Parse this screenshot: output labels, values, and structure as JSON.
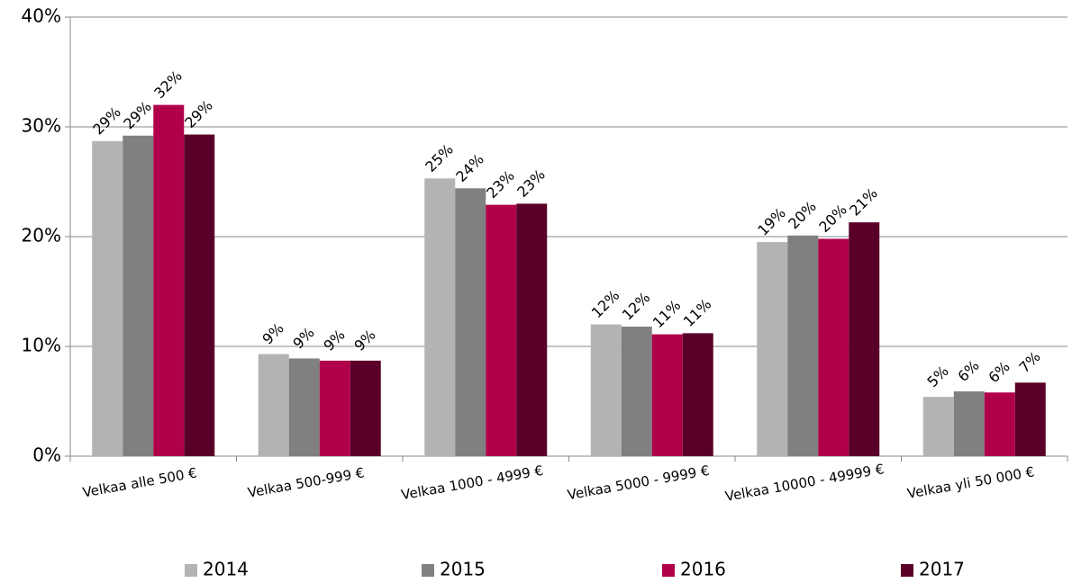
{
  "chart_data": {
    "type": "bar",
    "categories": [
      "Velkaa alle 500 €",
      "Velkaa 500-999 €",
      "Velkaa 1000 - 4999 €",
      "Velkaa 5000 - 9999 €",
      "Velkaa 10000 - 49999 €",
      "Velkaa yli 50 000 €"
    ],
    "series": [
      {
        "name": "2014",
        "color": "#b3b3b3",
        "values": [
          28.7,
          9.3,
          25.3,
          12.0,
          19.5,
          5.4
        ],
        "value_labels": [
          "29%",
          "9%",
          "25%",
          "12%",
          "19%",
          "5%"
        ]
      },
      {
        "name": "2015",
        "color": "#808080",
        "values": [
          29.2,
          8.9,
          24.4,
          11.8,
          20.1,
          5.9
        ],
        "value_labels": [
          "29%",
          "9%",
          "24%",
          "12%",
          "20%",
          "6%"
        ]
      },
      {
        "name": "2016",
        "color": "#b0004a",
        "values": [
          32.0,
          8.7,
          22.9,
          11.1,
          19.8,
          5.8
        ],
        "value_labels": [
          "32%",
          "9%",
          "23%",
          "11%",
          "20%",
          "6%"
        ]
      },
      {
        "name": "2017",
        "color": "#5a0028",
        "values": [
          29.3,
          8.7,
          23.0,
          11.2,
          21.3,
          6.7
        ],
        "value_labels": [
          "29%",
          "9%",
          "23%",
          "11%",
          "21%",
          "7%"
        ]
      }
    ],
    "ylim": [
      0,
      40
    ],
    "yticks": [
      {
        "value": 0,
        "label": "0%"
      },
      {
        "value": 10,
        "label": "10%"
      },
      {
        "value": 20,
        "label": "20%"
      },
      {
        "value": 30,
        "label": "30%"
      },
      {
        "value": 40,
        "label": "40%"
      }
    ],
    "grid": true,
    "legend": "bottom"
  }
}
